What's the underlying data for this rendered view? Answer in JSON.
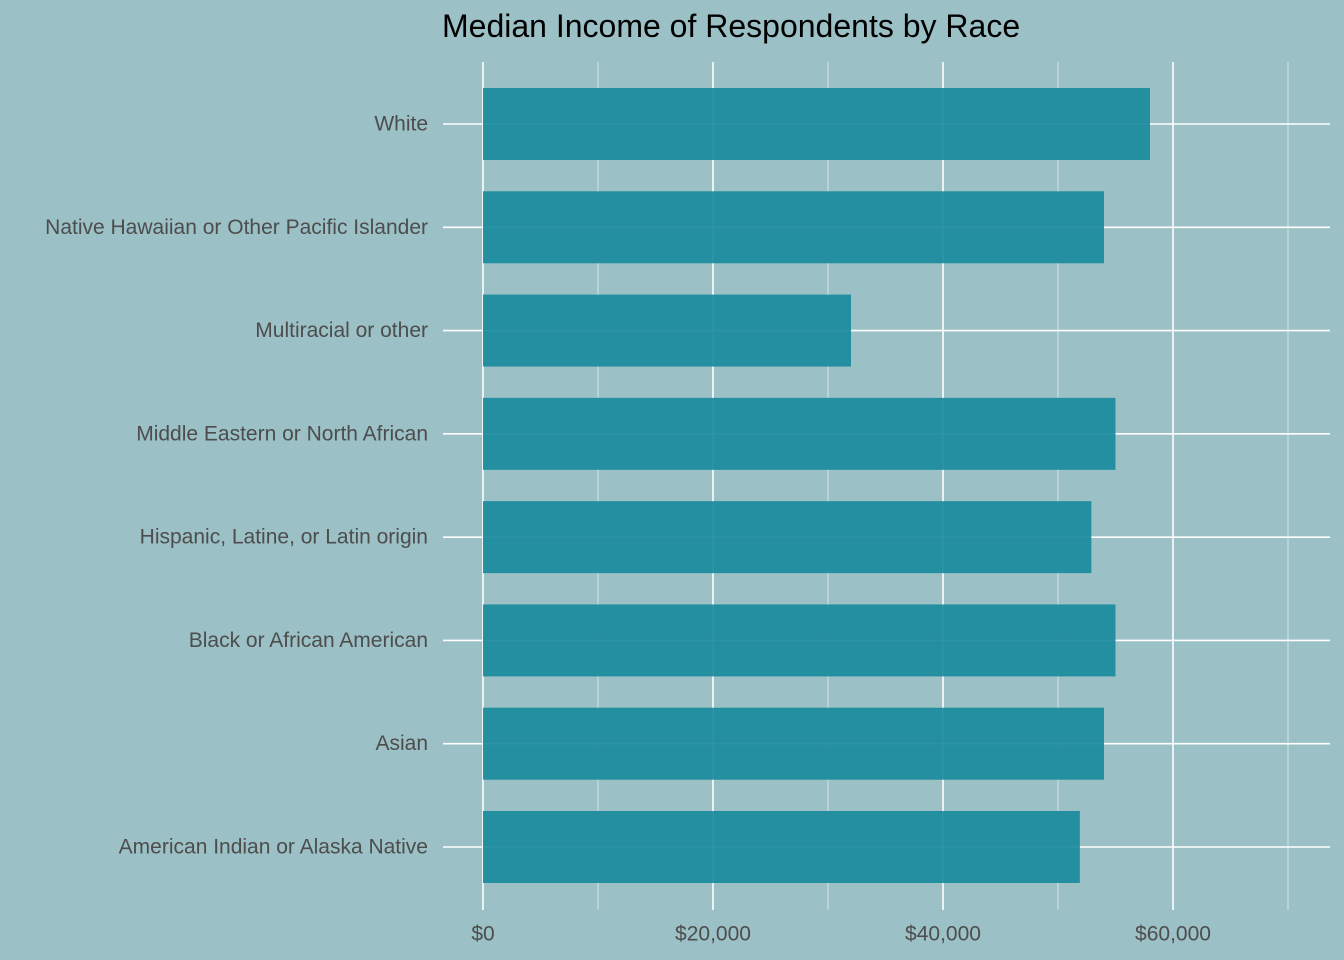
{
  "chart_data": {
    "type": "bar",
    "orientation": "horizontal",
    "title": "Median Income of Respondents by Race",
    "xlabel": "",
    "ylabel": "",
    "categories": [
      "White",
      "Native Hawaiian or Other Pacific Islander",
      "Multiracial or other",
      "Middle Eastern or North African",
      "Hispanic, Latine, or Latin origin",
      "Black or African American",
      "Asian",
      "American Indian or Alaska Native"
    ],
    "values": [
      58000,
      54000,
      32000,
      55000,
      52900,
      55000,
      54000,
      51900
    ],
    "xlim": [
      0,
      70000
    ],
    "x_ticks": [
      0,
      20000,
      40000,
      60000
    ],
    "x_tick_labels": [
      "$0",
      "$20,000",
      "$40,000",
      "$60,000"
    ],
    "grid": true,
    "legend": "none",
    "colors": {
      "bar": "#1a8b9c",
      "background": "#9bc0c5",
      "grid": "#ffffff",
      "text": "#4d4d4d",
      "title": "#000000"
    }
  }
}
